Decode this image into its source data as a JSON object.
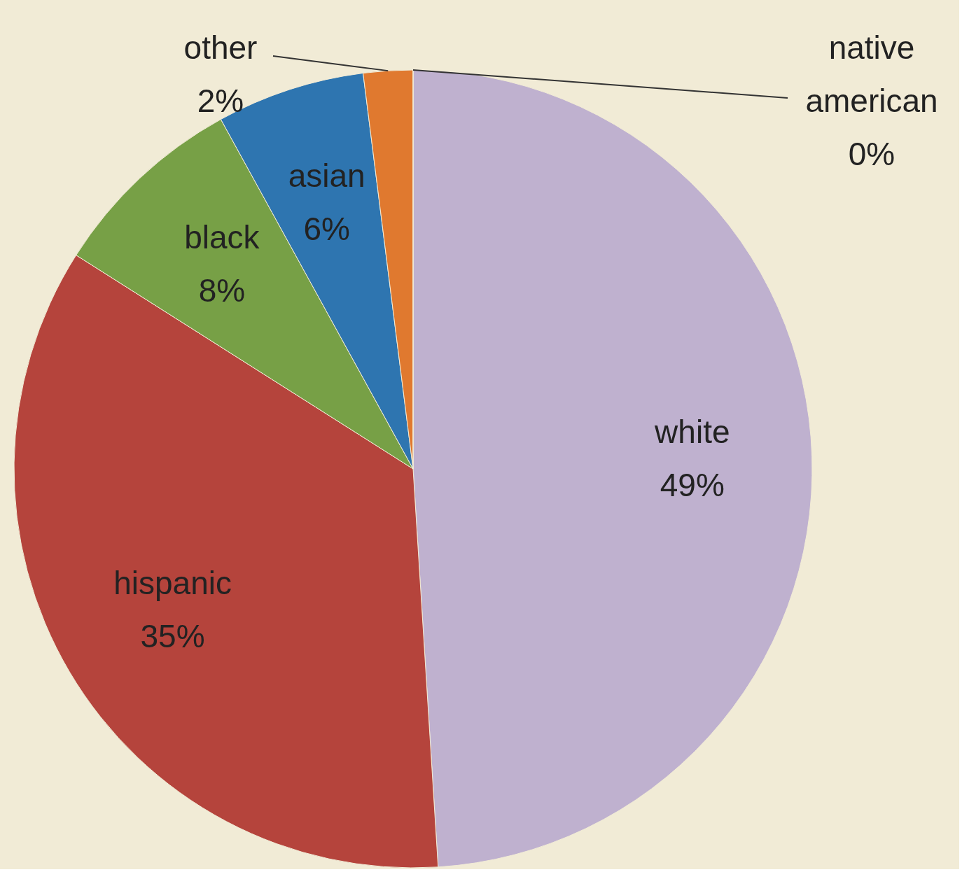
{
  "chart_data": {
    "type": "pie",
    "categories": [
      "white",
      "hispanic",
      "black",
      "asian",
      "other",
      "native american"
    ],
    "values": [
      49,
      35,
      8,
      6,
      2,
      0
    ],
    "value_labels": [
      "49%",
      "35%",
      "8%",
      "6%",
      "2%",
      "0%"
    ],
    "colors": [
      "#bfb1cf",
      "#b5443c",
      "#77a046",
      "#2e75b0",
      "#e0792f",
      "#9dc3e6"
    ]
  }
}
